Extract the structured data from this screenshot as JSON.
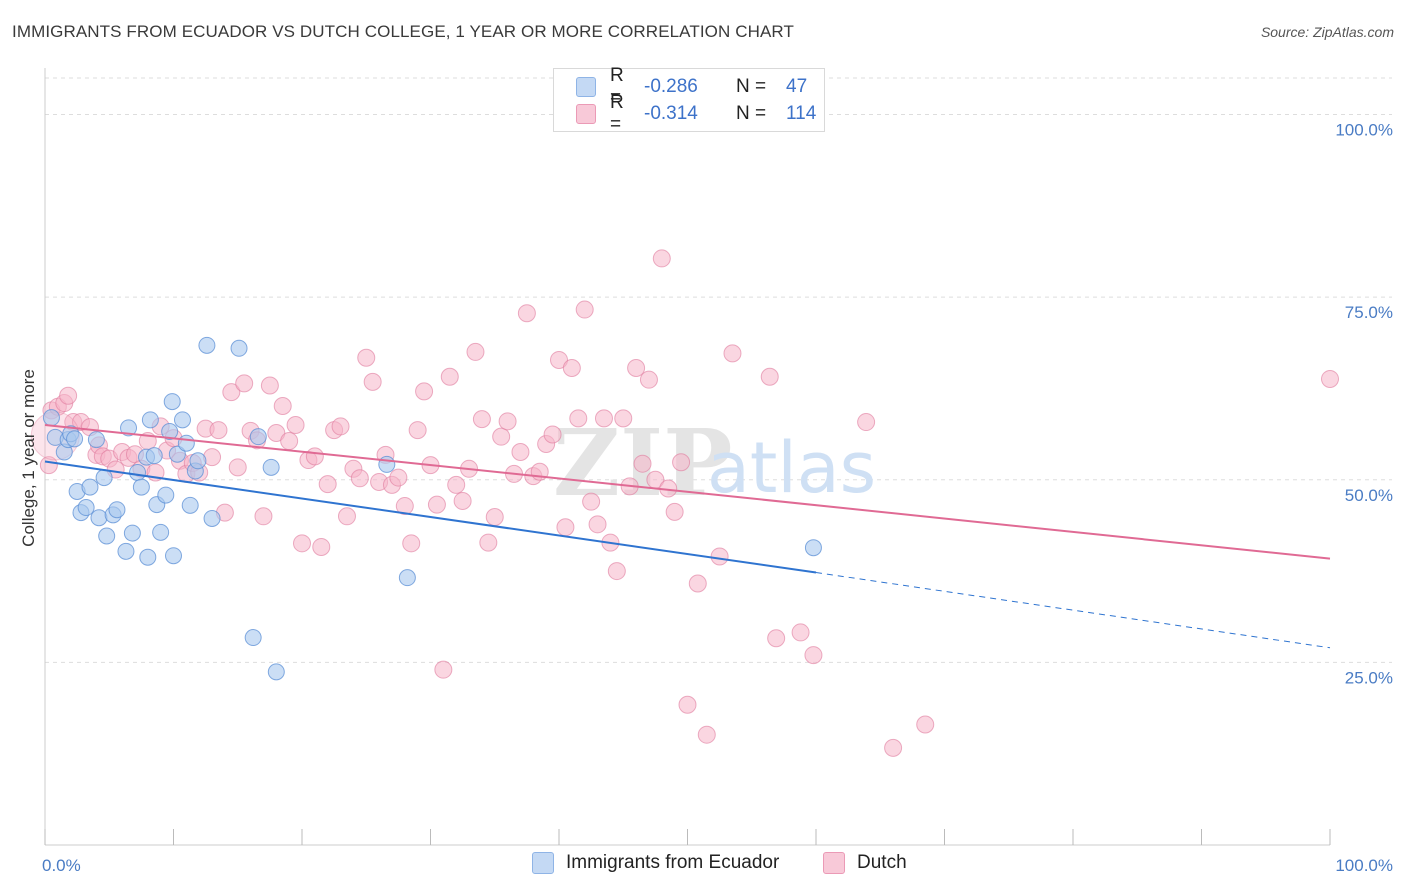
{
  "header": {
    "title": "IMMIGRANTS FROM ECUADOR VS DUTCH COLLEGE, 1 YEAR OR MORE CORRELATION CHART",
    "source": "Source: ZipAtlas.com"
  },
  "legend": {
    "rows": [
      {
        "r_label": "R =",
        "r_value": "-0.286",
        "n_label": "N =",
        "n_value": "47"
      },
      {
        "r_label": "R =",
        "r_value": "-0.314",
        "n_label": "N =",
        "n_value": "114"
      }
    ]
  },
  "watermark": {
    "zip": "ZIP",
    "atlas": "atlas"
  },
  "colors": {
    "blue_fill": "#a9c8ef",
    "blue_stroke": "#5b8fd6",
    "blue_line": "#2f74d0",
    "pink_fill": "#f5b5c9",
    "pink_stroke": "#e07a9c",
    "pink_line": "#e06a94",
    "grid": "#dddddd",
    "tick_text": "#4a7cc4"
  },
  "chart_data": {
    "type": "scatter",
    "title": "IMMIGRANTS FROM ECUADOR VS DUTCH COLLEGE, 1 YEAR OR MORE CORRELATION CHART",
    "xlabel": "",
    "ylabel": "College, 1 year or more",
    "xlim": [
      0,
      100
    ],
    "ylim": [
      0,
      105
    ],
    "x_tick_labels": [
      "0.0%",
      "100.0%"
    ],
    "y_ticks": [
      25,
      50,
      75,
      100
    ],
    "y_tick_labels": [
      "25.0%",
      "50.0%",
      "75.0%",
      "100.0%"
    ],
    "grid": true,
    "legend_position": "bottom-center",
    "series": [
      {
        "name": "Immigrants from Ecuador",
        "color": "#a9c8ef",
        "R": -0.286,
        "N": 47,
        "trend": {
          "x0": 0,
          "y0": 52.5,
          "x1": 60,
          "y1": 37.3,
          "dashed_to_x": 100,
          "dashed_to_y": 27.0
        },
        "points": [
          [
            0.5,
            58.5
          ],
          [
            0.8,
            55.8
          ],
          [
            1.5,
            53.8
          ],
          [
            1.8,
            55.5
          ],
          [
            2.0,
            56.3
          ],
          [
            2.3,
            55.6
          ],
          [
            2.5,
            48.4
          ],
          [
            2.8,
            45.5
          ],
          [
            3.2,
            46.2
          ],
          [
            3.5,
            49.0
          ],
          [
            4.0,
            55.5
          ],
          [
            4.2,
            44.8
          ],
          [
            4.6,
            50.3
          ],
          [
            4.8,
            42.3
          ],
          [
            5.3,
            45.2
          ],
          [
            5.6,
            45.9
          ],
          [
            6.3,
            40.2
          ],
          [
            6.5,
            57.1
          ],
          [
            6.8,
            42.7
          ],
          [
            7.2,
            51.0
          ],
          [
            7.5,
            49.0
          ],
          [
            7.9,
            53.1
          ],
          [
            8.0,
            39.4
          ],
          [
            8.2,
            58.2
          ],
          [
            8.5,
            53.3
          ],
          [
            8.7,
            46.6
          ],
          [
            9.0,
            42.8
          ],
          [
            9.4,
            47.9
          ],
          [
            9.7,
            56.6
          ],
          [
            9.9,
            60.7
          ],
          [
            10.0,
            39.6
          ],
          [
            10.3,
            53.5
          ],
          [
            10.7,
            58.2
          ],
          [
            11.0,
            55.0
          ],
          [
            11.3,
            46.5
          ],
          [
            11.7,
            51.2
          ],
          [
            11.9,
            52.6
          ],
          [
            12.6,
            68.4
          ],
          [
            13.0,
            44.7
          ],
          [
            15.1,
            68.0
          ],
          [
            16.2,
            28.4
          ],
          [
            16.6,
            55.9
          ],
          [
            17.6,
            51.7
          ],
          [
            18.0,
            23.7
          ],
          [
            26.6,
            52.1
          ],
          [
            28.2,
            36.6
          ],
          [
            59.8,
            40.7
          ]
        ]
      },
      {
        "name": "Dutch",
        "color": "#f5b5c9",
        "R": -0.314,
        "N": 114,
        "trend": {
          "x0": 0,
          "y0": 57.5,
          "x1": 100,
          "y1": 39.2
        },
        "points": [
          [
            0.3,
            52.0
          ],
          [
            0.5,
            59.5
          ],
          [
            1.0,
            60.0
          ],
          [
            1.5,
            60.5
          ],
          [
            1.8,
            61.5
          ],
          [
            2.2,
            57.9
          ],
          [
            2.8,
            57.9
          ],
          [
            3.5,
            57.2
          ],
          [
            4.0,
            53.4
          ],
          [
            4.2,
            54.7
          ],
          [
            4.5,
            53.2
          ],
          [
            5.0,
            52.9
          ],
          [
            5.5,
            51.4
          ],
          [
            6.0,
            53.8
          ],
          [
            6.5,
            53.0
          ],
          [
            7.0,
            53.5
          ],
          [
            7.5,
            51.5
          ],
          [
            8.0,
            55.3
          ],
          [
            8.6,
            51.0
          ],
          [
            9.0,
            57.3
          ],
          [
            9.5,
            54.0
          ],
          [
            10.0,
            55.7
          ],
          [
            10.5,
            52.6
          ],
          [
            11.0,
            50.8
          ],
          [
            11.5,
            52.3
          ],
          [
            12.0,
            51.0
          ],
          [
            12.5,
            57.0
          ],
          [
            13.0,
            53.1
          ],
          [
            13.5,
            56.8
          ],
          [
            14.0,
            45.5
          ],
          [
            14.5,
            62.0
          ],
          [
            15.0,
            51.7
          ],
          [
            15.5,
            63.2
          ],
          [
            16.0,
            56.7
          ],
          [
            16.5,
            55.4
          ],
          [
            17.0,
            45.0
          ],
          [
            17.5,
            62.9
          ],
          [
            18.0,
            56.4
          ],
          [
            18.5,
            60.1
          ],
          [
            19.0,
            55.3
          ],
          [
            19.5,
            57.5
          ],
          [
            20.0,
            41.3
          ],
          [
            20.5,
            52.7
          ],
          [
            21.0,
            53.2
          ],
          [
            21.5,
            40.8
          ],
          [
            22.0,
            49.4
          ],
          [
            22.5,
            56.8
          ],
          [
            23.0,
            57.3
          ],
          [
            23.5,
            45.0
          ],
          [
            24.0,
            51.5
          ],
          [
            24.5,
            50.2
          ],
          [
            25.0,
            66.7
          ],
          [
            25.5,
            63.4
          ],
          [
            26.0,
            49.7
          ],
          [
            26.5,
            53.4
          ],
          [
            27.0,
            49.3
          ],
          [
            27.5,
            50.3
          ],
          [
            28.0,
            46.4
          ],
          [
            28.5,
            41.3
          ],
          [
            29.0,
            56.8
          ],
          [
            29.5,
            62.1
          ],
          [
            30.0,
            52.0
          ],
          [
            30.5,
            46.6
          ],
          [
            31.0,
            24.0
          ],
          [
            31.5,
            64.1
          ],
          [
            32.0,
            49.3
          ],
          [
            32.5,
            47.1
          ],
          [
            33.0,
            51.5
          ],
          [
            33.5,
            67.5
          ],
          [
            34.0,
            58.3
          ],
          [
            34.5,
            41.4
          ],
          [
            35.0,
            44.9
          ],
          [
            35.5,
            55.9
          ],
          [
            36.0,
            58.0
          ],
          [
            36.5,
            50.8
          ],
          [
            37.0,
            53.8
          ],
          [
            37.5,
            72.8
          ],
          [
            38.0,
            50.5
          ],
          [
            38.5,
            51.1
          ],
          [
            39.0,
            54.9
          ],
          [
            39.5,
            56.2
          ],
          [
            40.0,
            66.4
          ],
          [
            40.5,
            43.5
          ],
          [
            41.0,
            65.3
          ],
          [
            41.5,
            58.4
          ],
          [
            42.0,
            73.3
          ],
          [
            42.5,
            47.0
          ],
          [
            43.0,
            43.9
          ],
          [
            43.5,
            58.4
          ],
          [
            44.0,
            41.4
          ],
          [
            44.5,
            37.5
          ],
          [
            45.0,
            58.4
          ],
          [
            45.5,
            49.1
          ],
          [
            46.0,
            65.3
          ],
          [
            46.5,
            52.2
          ],
          [
            47.0,
            63.7
          ],
          [
            47.5,
            50.0
          ],
          [
            48.0,
            80.3
          ],
          [
            48.5,
            48.8
          ],
          [
            49.0,
            45.6
          ],
          [
            49.5,
            52.4
          ],
          [
            50.0,
            19.2
          ],
          [
            50.8,
            35.8
          ],
          [
            51.5,
            15.1
          ],
          [
            52.5,
            39.5
          ],
          [
            53.5,
            67.3
          ],
          [
            56.4,
            64.1
          ],
          [
            56.9,
            28.3
          ],
          [
            58.8,
            29.1
          ],
          [
            59.8,
            26.0
          ],
          [
            63.9,
            57.9
          ],
          [
            66.0,
            13.3
          ],
          [
            68.5,
            16.5
          ],
          [
            100.0,
            63.8
          ]
        ]
      }
    ]
  },
  "bottom_legend": {
    "items": [
      {
        "label": "Immigrants from Ecuador"
      },
      {
        "label": "Dutch"
      }
    ]
  }
}
